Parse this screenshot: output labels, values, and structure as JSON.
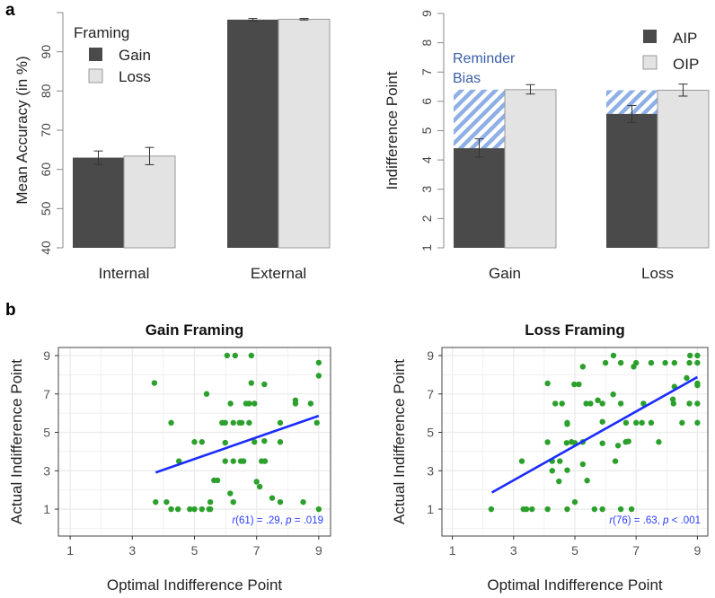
{
  "panel_labels": {
    "a": "a",
    "b": "b"
  },
  "colors": {
    "dark_bar": "#4a4a4a",
    "light_bar": "#e3e3e3",
    "hatch": "#8fb0e6",
    "point": "#2ca02c",
    "fit_line": "#1a2cff",
    "bias_text": "#3a5fa8",
    "stat_text": "#2a3cff"
  },
  "chart_data": [
    {
      "type": "bar",
      "id": "accuracy",
      "ylabel": "Mean Accuracy (in %)",
      "ylim": [
        40,
        100
      ],
      "yticks": [
        40,
        50,
        60,
        70,
        80,
        90,
        100
      ],
      "ytick_labels": [
        "40",
        "50",
        "60",
        "70",
        "80",
        "90",
        ""
      ],
      "categories": [
        "Internal",
        "External"
      ],
      "legend_title": "Framing",
      "legend_position": "top-left",
      "series": [
        {
          "name": "Gain",
          "values": [
            63.0,
            98.2
          ],
          "err_low": [
            61.3,
            97.9
          ],
          "err_high": [
            64.7,
            98.5
          ]
        },
        {
          "name": "Loss",
          "values": [
            63.4,
            98.3
          ],
          "err_low": [
            61.2,
            98.1
          ],
          "err_high": [
            65.6,
            98.5
          ]
        }
      ]
    },
    {
      "type": "bar",
      "id": "indifference",
      "ylabel": "Indifference Point",
      "ylim": [
        1,
        9
      ],
      "yticks": [
        1,
        2,
        3,
        4,
        5,
        6,
        7,
        8,
        9
      ],
      "ytick_labels": [
        "1",
        "2",
        "3",
        "4",
        "5",
        "6",
        "7",
        "8",
        "9"
      ],
      "categories": [
        "Gain",
        "Loss"
      ],
      "legend_position": "top-right",
      "annotation": [
        "Reminder",
        "Bias"
      ],
      "series": [
        {
          "name": "AIP",
          "values": [
            4.4,
            5.57
          ],
          "err_low": [
            4.1,
            5.28
          ],
          "err_high": [
            4.72,
            5.86
          ]
        },
        {
          "name": "OIP",
          "values": [
            6.4,
            6.38
          ],
          "err_low": [
            6.25,
            6.18
          ],
          "err_high": [
            6.57,
            6.59
          ]
        }
      ]
    },
    {
      "type": "scatter",
      "id": "gain-scatter",
      "title": "Gain Framing",
      "xlabel": "Optimal Indifference Point",
      "ylabel": "Actual Indifference Point",
      "xlim": [
        0.62,
        9.38
      ],
      "ylim": [
        -0.4,
        9.42
      ],
      "xticks": [
        1,
        3,
        5,
        7,
        9
      ],
      "yticks": [
        1,
        3,
        5,
        7,
        9
      ],
      "grid": true,
      "stat": {
        "r_label": "r",
        "df": "(61) = .29, ",
        "p_label": "p",
        "p_text": " = .019"
      },
      "fit": {
        "x": [
          3.75,
          9.0
        ],
        "y": [
          2.91,
          5.86
        ]
      },
      "points": [
        [
          6.05,
          9
        ],
        [
          6.31,
          9
        ],
        [
          6.83,
          9
        ],
        [
          9,
          8.63
        ],
        [
          9,
          7.95
        ],
        [
          3.71,
          7.57
        ],
        [
          6.83,
          7.57
        ],
        [
          7.25,
          7.5
        ],
        [
          5.39,
          7
        ],
        [
          6.16,
          6.5
        ],
        [
          6.66,
          6.5
        ],
        [
          6.76,
          6.5
        ],
        [
          6.93,
          6.5
        ],
        [
          8.25,
          6.67
        ],
        [
          8.25,
          6.5
        ],
        [
          8.74,
          6.5
        ],
        [
          4.25,
          5.5
        ],
        [
          5.89,
          5.5
        ],
        [
          5.99,
          5.5
        ],
        [
          6.25,
          5.5
        ],
        [
          6.45,
          5.5
        ],
        [
          6.52,
          5.5
        ],
        [
          6.76,
          5.5
        ],
        [
          7.76,
          5.5
        ],
        [
          8.94,
          5.5
        ],
        [
          5.0,
          4.5
        ],
        [
          5.24,
          4.5
        ],
        [
          5.99,
          4.46
        ],
        [
          6.93,
          4.5
        ],
        [
          7.25,
          4.55
        ],
        [
          7.76,
          4.5
        ],
        [
          4.5,
          3.5
        ],
        [
          5.99,
          3.5
        ],
        [
          6.25,
          3.5
        ],
        [
          6.49,
          3.5
        ],
        [
          6.58,
          3.5
        ],
        [
          7.16,
          3.5
        ],
        [
          7.27,
          3.5
        ],
        [
          5.63,
          2.5
        ],
        [
          5.74,
          2.5
        ],
        [
          7.0,
          2.43
        ],
        [
          7.1,
          2.17
        ],
        [
          6.15,
          1.82
        ],
        [
          3.75,
          1.37
        ],
        [
          4.1,
          1.37
        ],
        [
          5.51,
          1.37
        ],
        [
          6.25,
          1.37
        ],
        [
          7.5,
          1.58
        ],
        [
          7.76,
          1.37
        ],
        [
          8.5,
          1.37
        ],
        [
          4.25,
          1
        ],
        [
          4.47,
          1
        ],
        [
          4.85,
          1
        ],
        [
          5.0,
          1
        ],
        [
          5.24,
          1
        ],
        [
          5.47,
          1
        ],
        [
          5.51,
          1
        ],
        [
          9,
          1
        ]
      ]
    },
    {
      "type": "scatter",
      "id": "loss-scatter",
      "title": "Loss Framing",
      "xlabel": "Optimal Indifference Point",
      "ylabel": "Actual Indifference Point",
      "xlim": [
        0.66,
        9.34
      ],
      "ylim": [
        -0.4,
        9.42
      ],
      "xticks": [
        1,
        3,
        5,
        7,
        9
      ],
      "yticks": [
        1,
        3,
        5,
        7,
        9
      ],
      "grid": true,
      "stat": {
        "r_label": "r",
        "df": "(76) = .63, ",
        "p_label": "p",
        "p_text": " < .001"
      },
      "fit": {
        "x": [
          2.29,
          9.0
        ],
        "y": [
          1.87,
          7.88
        ]
      },
      "points": [
        [
          6.26,
          9
        ],
        [
          8.76,
          9
        ],
        [
          9,
          9
        ],
        [
          6.0,
          8.62
        ],
        [
          6.5,
          8.62
        ],
        [
          7.0,
          8.62
        ],
        [
          7.49,
          8.62
        ],
        [
          7.95,
          8.62
        ],
        [
          8.25,
          8.62
        ],
        [
          8.74,
          8.62
        ],
        [
          9,
          8.62
        ],
        [
          6.92,
          8.42
        ],
        [
          5.26,
          8.42
        ],
        [
          8.65,
          7.83
        ],
        [
          4.11,
          7.55
        ],
        [
          4.98,
          7.5
        ],
        [
          5.13,
          7.5
        ],
        [
          9,
          7.55
        ],
        [
          9,
          7.45
        ],
        [
          8.25,
          7.38
        ],
        [
          6.25,
          6.98
        ],
        [
          5.75,
          6.67
        ],
        [
          4.36,
          6.5
        ],
        [
          4.58,
          6.5
        ],
        [
          5.37,
          6.5
        ],
        [
          5.51,
          6.5
        ],
        [
          5.9,
          6.5
        ],
        [
          6.5,
          6.5
        ],
        [
          7.24,
          6.5
        ],
        [
          8.2,
          6.72
        ],
        [
          8.22,
          6.5
        ],
        [
          8.74,
          6.5
        ],
        [
          9,
          6.5
        ],
        [
          4.75,
          5.5
        ],
        [
          4.75,
          5.43
        ],
        [
          5.9,
          5.55
        ],
        [
          6.67,
          5.5
        ],
        [
          7.0,
          5.5
        ],
        [
          7.19,
          5.5
        ],
        [
          7.49,
          5.5
        ],
        [
          8.5,
          5.5
        ],
        [
          9,
          5.5
        ],
        [
          4.11,
          4.49
        ],
        [
          4.73,
          4.45
        ],
        [
          4.89,
          4.5
        ],
        [
          5.0,
          4.45
        ],
        [
          5.26,
          4.5
        ],
        [
          5.9,
          4.43
        ],
        [
          6.41,
          4.31
        ],
        [
          6.66,
          4.5
        ],
        [
          6.75,
          4.53
        ],
        [
          7.74,
          4.5
        ],
        [
          3.27,
          3.5
        ],
        [
          4.26,
          3.5
        ],
        [
          4.51,
          3.5
        ],
        [
          5.26,
          3.34
        ],
        [
          6.32,
          3.5
        ],
        [
          4.26,
          3.0
        ],
        [
          4.75,
          3.03
        ],
        [
          4.48,
          2.45
        ],
        [
          5.4,
          2.49
        ],
        [
          5.0,
          1.37
        ],
        [
          2.27,
          1
        ],
        [
          3.32,
          1
        ],
        [
          3.42,
          1
        ],
        [
          3.6,
          1
        ],
        [
          4.11,
          1
        ],
        [
          4.75,
          1
        ],
        [
          5.64,
          1
        ],
        [
          5.9,
          1
        ],
        [
          6.5,
          1
        ],
        [
          6.85,
          1
        ]
      ]
    }
  ]
}
